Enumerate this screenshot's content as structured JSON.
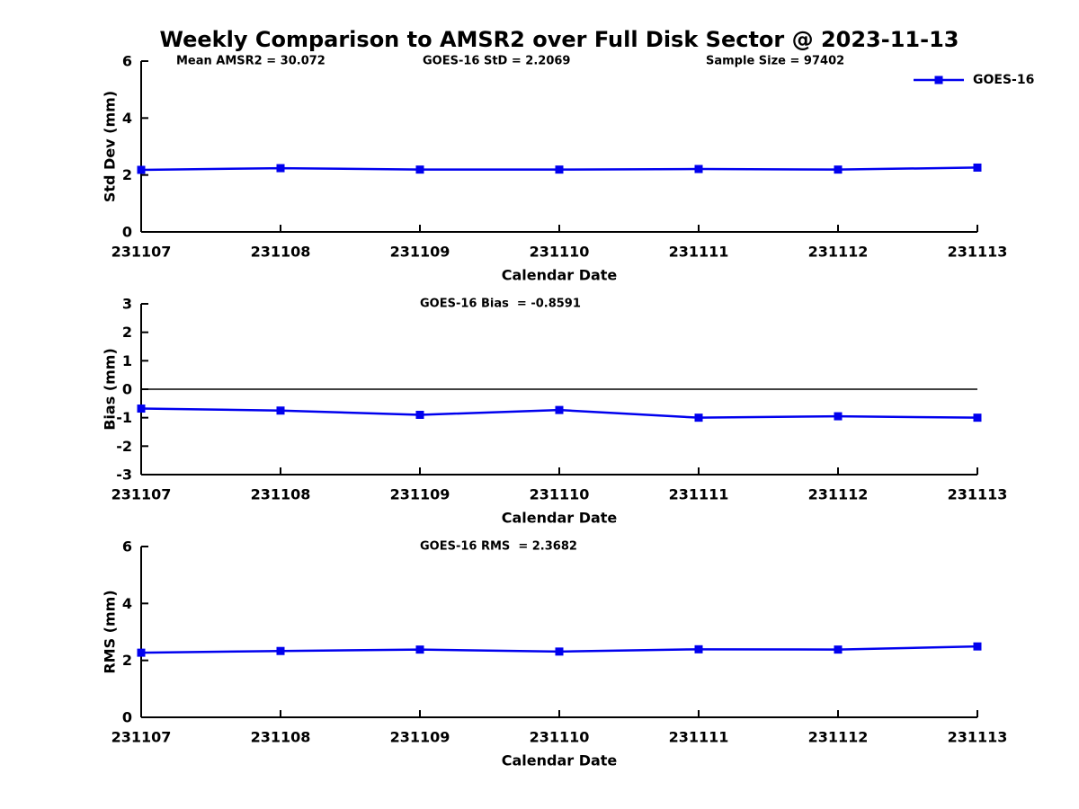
{
  "title": "Weekly Comparison to AMSR2 over Full Disk Sector @ 2023-11-13",
  "accent_color": "#0000ee",
  "axis_color": "#000000",
  "chart_data": [
    {
      "type": "line",
      "panel": "std-dev",
      "annotations": [
        "Mean AMSR2 = 30.072",
        "GOES-16 StD = 2.2069",
        "Sample Size = 97402"
      ],
      "legend": {
        "position": "top-right",
        "entries": [
          "GOES-16"
        ]
      },
      "xlabel": "Calendar Date",
      "ylabel": "Std Dev (mm)",
      "ylim": [
        0,
        6
      ],
      "yticks": [
        0,
        2,
        4,
        6
      ],
      "grid": false,
      "zero_line": false,
      "categories": [
        "231107",
        "231108",
        "231109",
        "231110",
        "231111",
        "231112",
        "231113"
      ],
      "series": [
        {
          "name": "GOES-16",
          "color": "#0000ee",
          "marker": "square",
          "values": [
            2.18,
            2.24,
            2.19,
            2.19,
            2.21,
            2.19,
            2.26
          ]
        }
      ]
    },
    {
      "type": "line",
      "panel": "bias",
      "annotations": [
        "GOES-16 Bias  = -0.8591"
      ],
      "legend": null,
      "xlabel": "Calendar Date",
      "ylabel": "Bias (mm)",
      "ylim": [
        -3,
        3
      ],
      "yticks": [
        -3,
        -2,
        -1,
        0,
        1,
        2,
        3
      ],
      "grid": false,
      "zero_line": true,
      "categories": [
        "231107",
        "231108",
        "231109",
        "231110",
        "231111",
        "231112",
        "231113"
      ],
      "series": [
        {
          "name": "GOES-16",
          "color": "#0000ee",
          "marker": "square",
          "values": [
            -0.68,
            -0.75,
            -0.9,
            -0.73,
            -1.0,
            -0.95,
            -1.0
          ]
        }
      ]
    },
    {
      "type": "line",
      "panel": "rms",
      "annotations": [
        "GOES-16 RMS  = 2.3682"
      ],
      "legend": null,
      "xlabel": "Calendar Date",
      "ylabel": "RMS (mm)",
      "ylim": [
        0,
        6
      ],
      "yticks": [
        0,
        2,
        4,
        6
      ],
      "grid": false,
      "zero_line": false,
      "categories": [
        "231107",
        "231108",
        "231109",
        "231110",
        "231111",
        "231112",
        "231113"
      ],
      "series": [
        {
          "name": "GOES-16",
          "color": "#0000ee",
          "marker": "square",
          "values": [
            2.27,
            2.33,
            2.38,
            2.31,
            2.39,
            2.38,
            2.49
          ]
        }
      ]
    }
  ]
}
